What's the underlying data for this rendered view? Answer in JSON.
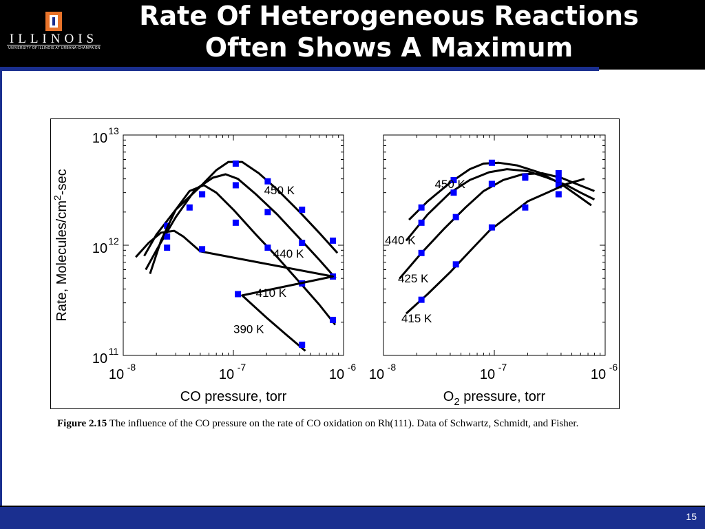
{
  "header": {
    "title_line1": "Rate Of Heterogeneous Reactions",
    "title_line2": "Often Shows A Maximum",
    "logo_text": "ILLINOIS",
    "logo_subtext": "UNIVERSITY OF ILLINOIS AT URBANA-CHAMPAIGN"
  },
  "footer": {
    "page_number": "15"
  },
  "caption": {
    "label": "Figure 2.15",
    "text": " The influence of the CO pressure on the rate of CO oxidation on Rh(111).  Data of Schwartz, Schmidt, and Fisher."
  },
  "colors": {
    "header_bg": "#000000",
    "accent": "#1a2f8f",
    "marker": "#0000ff",
    "curve": "#000000"
  },
  "chart_data": [
    {
      "type": "scatter",
      "xlabel": "CO pressure, torr",
      "ylabel": "Rate, Molecules/cm2-sec",
      "x_scale": "log",
      "y_scale": "log",
      "xlim": [
        1e-08,
        1e-06
      ],
      "ylim": [
        100000000000.0,
        10000000000000.0
      ],
      "x_ticks": [
        "10-8",
        "10-7",
        "10-6"
      ],
      "y_ticks": [
        "1011",
        "1012",
        "1013"
      ],
      "grid": false,
      "series": [
        {
          "name": "450 K",
          "points": [
            [
              2.5e-08,
              1500000000000.0
            ],
            [
              5.2e-08,
              2900000000000.0
            ],
            [
              1.05e-07,
              5500000000000.0
            ],
            [
              2.05e-07,
              3800000000000.0
            ],
            [
              4.2e-07,
              2100000000000.0
            ],
            [
              8e-07,
              1100000000000.0
            ]
          ],
          "curve": [
            [
              1.55e-08,
              800000000000.0
            ],
            [
              2e-08,
              1250000000000.0
            ],
            [
              3e-08,
              2100000000000.0
            ],
            [
              5e-08,
              3400000000000.0
            ],
            [
              7e-08,
              4800000000000.0
            ],
            [
              9e-08,
              5700000000000.0
            ],
            [
              1.2e-07,
              5700000000000.0
            ],
            [
              1.7e-07,
              4500000000000.0
            ],
            [
              2.5e-07,
              3200000000000.0
            ],
            [
              4e-07,
              2000000000000.0
            ],
            [
              6e-07,
              1300000000000.0
            ],
            [
              8.8e-07,
              850000000000.0
            ]
          ]
        },
        {
          "name": "440 K",
          "points": [
            [
              2.5e-08,
              1200000000000.0
            ],
            [
              4e-08,
              2200000000000.0
            ],
            [
              1.05e-07,
              3500000000000.0
            ],
            [
              2.05e-07,
              2000000000000.0
            ],
            [
              4.2e-07,
              1050000000000.0
            ],
            [
              8e-07,
              520000000000.0
            ]
          ],
          "curve": [
            [
              1.6e-08,
              600000000000.0
            ],
            [
              2e-08,
              900000000000.0
            ],
            [
              3e-08,
              1800000000000.0
            ],
            [
              4.5e-08,
              3200000000000.0
            ],
            [
              6.5e-08,
              4100000000000.0
            ],
            [
              8.5e-08,
              4400000000000.0
            ],
            [
              1.1e-07,
              4000000000000.0
            ],
            [
              1.6e-07,
              2900000000000.0
            ],
            [
              2.5e-07,
              1900000000000.0
            ],
            [
              4e-07,
              1150000000000.0
            ],
            [
              6e-07,
              740000000000.0
            ],
            [
              8.5e-07,
              500000000000.0
            ]
          ]
        },
        {
          "name": "410 K",
          "points": [
            [
              2.5e-08,
              950000000000.0
            ],
            [
              5.2e-08,
              2900000000000.0
            ],
            [
              1.05e-07,
              1600000000000.0
            ],
            [
              2.05e-07,
              950000000000.0
            ],
            [
              4.2e-07,
              450000000000.0
            ],
            [
              8e-07,
              210000000000.0
            ]
          ],
          "curve": [
            [
              1.75e-08,
              550000000000.0
            ],
            [
              2.2e-08,
              1100000000000.0
            ],
            [
              3e-08,
              2100000000000.0
            ],
            [
              4e-08,
              3100000000000.0
            ],
            [
              5.4e-08,
              3500000000000.0
            ],
            [
              7e-08,
              3000000000000.0
            ],
            [
              1e-07,
              2100000000000.0
            ],
            [
              1.6e-07,
              1250000000000.0
            ],
            [
              2.5e-07,
              780000000000.0
            ],
            [
              4e-07,
              460000000000.0
            ],
            [
              6e-07,
              290000000000.0
            ],
            [
              8.4e-07,
              190000000000.0
            ]
          ]
        },
        {
          "name": "390 K",
          "points": [
            [
              5.2e-08,
              920000000000.0
            ],
            [
              1.1e-07,
              360000000000.0
            ],
            [
              4.2e-07,
              125000000000.0
            ]
          ],
          "curve": [
            [
              1.3e-08,
              780000000000.0
            ],
            [
              1.7e-08,
              1050000000000.0
            ],
            [
              2.2e-08,
              1300000000000.0
            ],
            [
              2.9e-08,
              1350000000000.0
            ],
            [
              3.5e-08,
              1200000000000.0
            ],
            [
              5e-08,
              880000000000.0
            ],
            [
              8e-07,
              520000000000.0
            ],
            [
              1.2e-07,
              350000000000.0
            ],
            [
              2e-07,
              220000000000.0
            ],
            [
              3e-07,
              155000000000.0
            ],
            [
              4.5e-07,
              110000000000.0
            ]
          ]
        }
      ]
    },
    {
      "type": "scatter",
      "xlabel": "O2 pressure, torr",
      "x_scale": "log",
      "y_scale": "log",
      "xlim": [
        1e-08,
        1e-06
      ],
      "ylim": [
        100000000000.0,
        10000000000000.0
      ],
      "x_ticks": [
        "10-8",
        "10-7",
        "10-6"
      ],
      "grid": false,
      "series": [
        {
          "name": "450 K",
          "points": [
            [
              2.2e-08,
              2200000000000.0
            ],
            [
              4.3e-08,
              3900000000000.0
            ],
            [
              9.5e-08,
              5600000000000.0
            ],
            [
              3.8e-07,
              4500000000000.0
            ]
          ],
          "curve": [
            [
              1.7e-08,
              1700000000000.0
            ],
            [
              2.5e-08,
              2500000000000.0
            ],
            [
              4e-08,
              3700000000000.0
            ],
            [
              6e-08,
              4900000000000.0
            ],
            [
              8e-08,
              5500000000000.0
            ],
            [
              1.1e-07,
              5600000000000.0
            ],
            [
              1.6e-07,
              5300000000000.0
            ],
            [
              2.5e-07,
              4600000000000.0
            ],
            [
              4e-07,
              3600000000000.0
            ],
            [
              6e-07,
              2700000000000.0
            ],
            [
              7.5e-07,
              2300000000000.0
            ]
          ]
        },
        {
          "name": "440 K",
          "points": [
            [
              2.2e-08,
              1600000000000.0
            ],
            [
              4.3e-08,
              3000000000000.0
            ],
            [
              9.5e-08,
              3600000000000.0
            ],
            [
              1.9e-07,
              4100000000000.0
            ],
            [
              3.8e-07,
              3500000000000.0
            ]
          ],
          "curve": [
            [
              1.6e-08,
              1100000000000.0
            ],
            [
              2.5e-08,
              1900000000000.0
            ],
            [
              4e-08,
              3000000000000.0
            ],
            [
              6e-08,
              3900000000000.0
            ],
            [
              9e-08,
              4600000000000.0
            ],
            [
              1.3e-07,
              4900000000000.0
            ],
            [
              2e-07,
              4700000000000.0
            ],
            [
              3e-07,
              4100000000000.0
            ],
            [
              4.5e-07,
              3500000000000.0
            ],
            [
              6e-07,
              3000000000000.0
            ],
            [
              8e-07,
              2600000000000.0
            ]
          ]
        },
        {
          "name": "425 K",
          "points": [
            [
              2.2e-08,
              850000000000.0
            ],
            [
              4.5e-08,
              1800000000000.0
            ],
            [
              9.5e-08,
              3600000000000.0
            ],
            [
              1.9e-07,
              4200000000000.0
            ],
            [
              3.8e-07,
              4000000000000.0
            ]
          ],
          "curve": [
            [
              1.4e-08,
              500000000000.0
            ],
            [
              2.2e-08,
              850000000000.0
            ],
            [
              3.5e-08,
              1400000000000.0
            ],
            [
              5.5e-08,
              2200000000000.0
            ],
            [
              8e-08,
              3100000000000.0
            ],
            [
              1.2e-07,
              3900000000000.0
            ],
            [
              1.8e-07,
              4400000000000.0
            ],
            [
              2.7e-07,
              4500000000000.0
            ],
            [
              4e-07,
              4100000000000.0
            ],
            [
              5.5e-07,
              3600000000000.0
            ],
            [
              8e-07,
              3100000000000.0
            ]
          ]
        },
        {
          "name": "415 K",
          "points": [
            [
              2.2e-08,
              320000000000.0
            ],
            [
              4.5e-08,
              670000000000.0
            ],
            [
              9.5e-08,
              1450000000000.0
            ],
            [
              1.9e-07,
              2200000000000.0
            ],
            [
              3.8e-07,
              2900000000000.0
            ]
          ],
          "curve": [
            [
              1.6e-08,
              240000000000.0
            ],
            [
              2.5e-08,
              360000000000.0
            ],
            [
              4e-08,
              570000000000.0
            ],
            [
              6e-08,
              880000000000.0
            ],
            [
              9e-08,
              1350000000000.0
            ],
            [
              1.4e-07,
              1900000000000.0
            ],
            [
              2e-07,
              2500000000000.0
            ],
            [
              3e-07,
              3000000000000.0
            ],
            [
              4.5e-07,
              3600000000000.0
            ],
            [
              6.5e-07,
              4000000000000.0
            ]
          ]
        }
      ]
    }
  ]
}
